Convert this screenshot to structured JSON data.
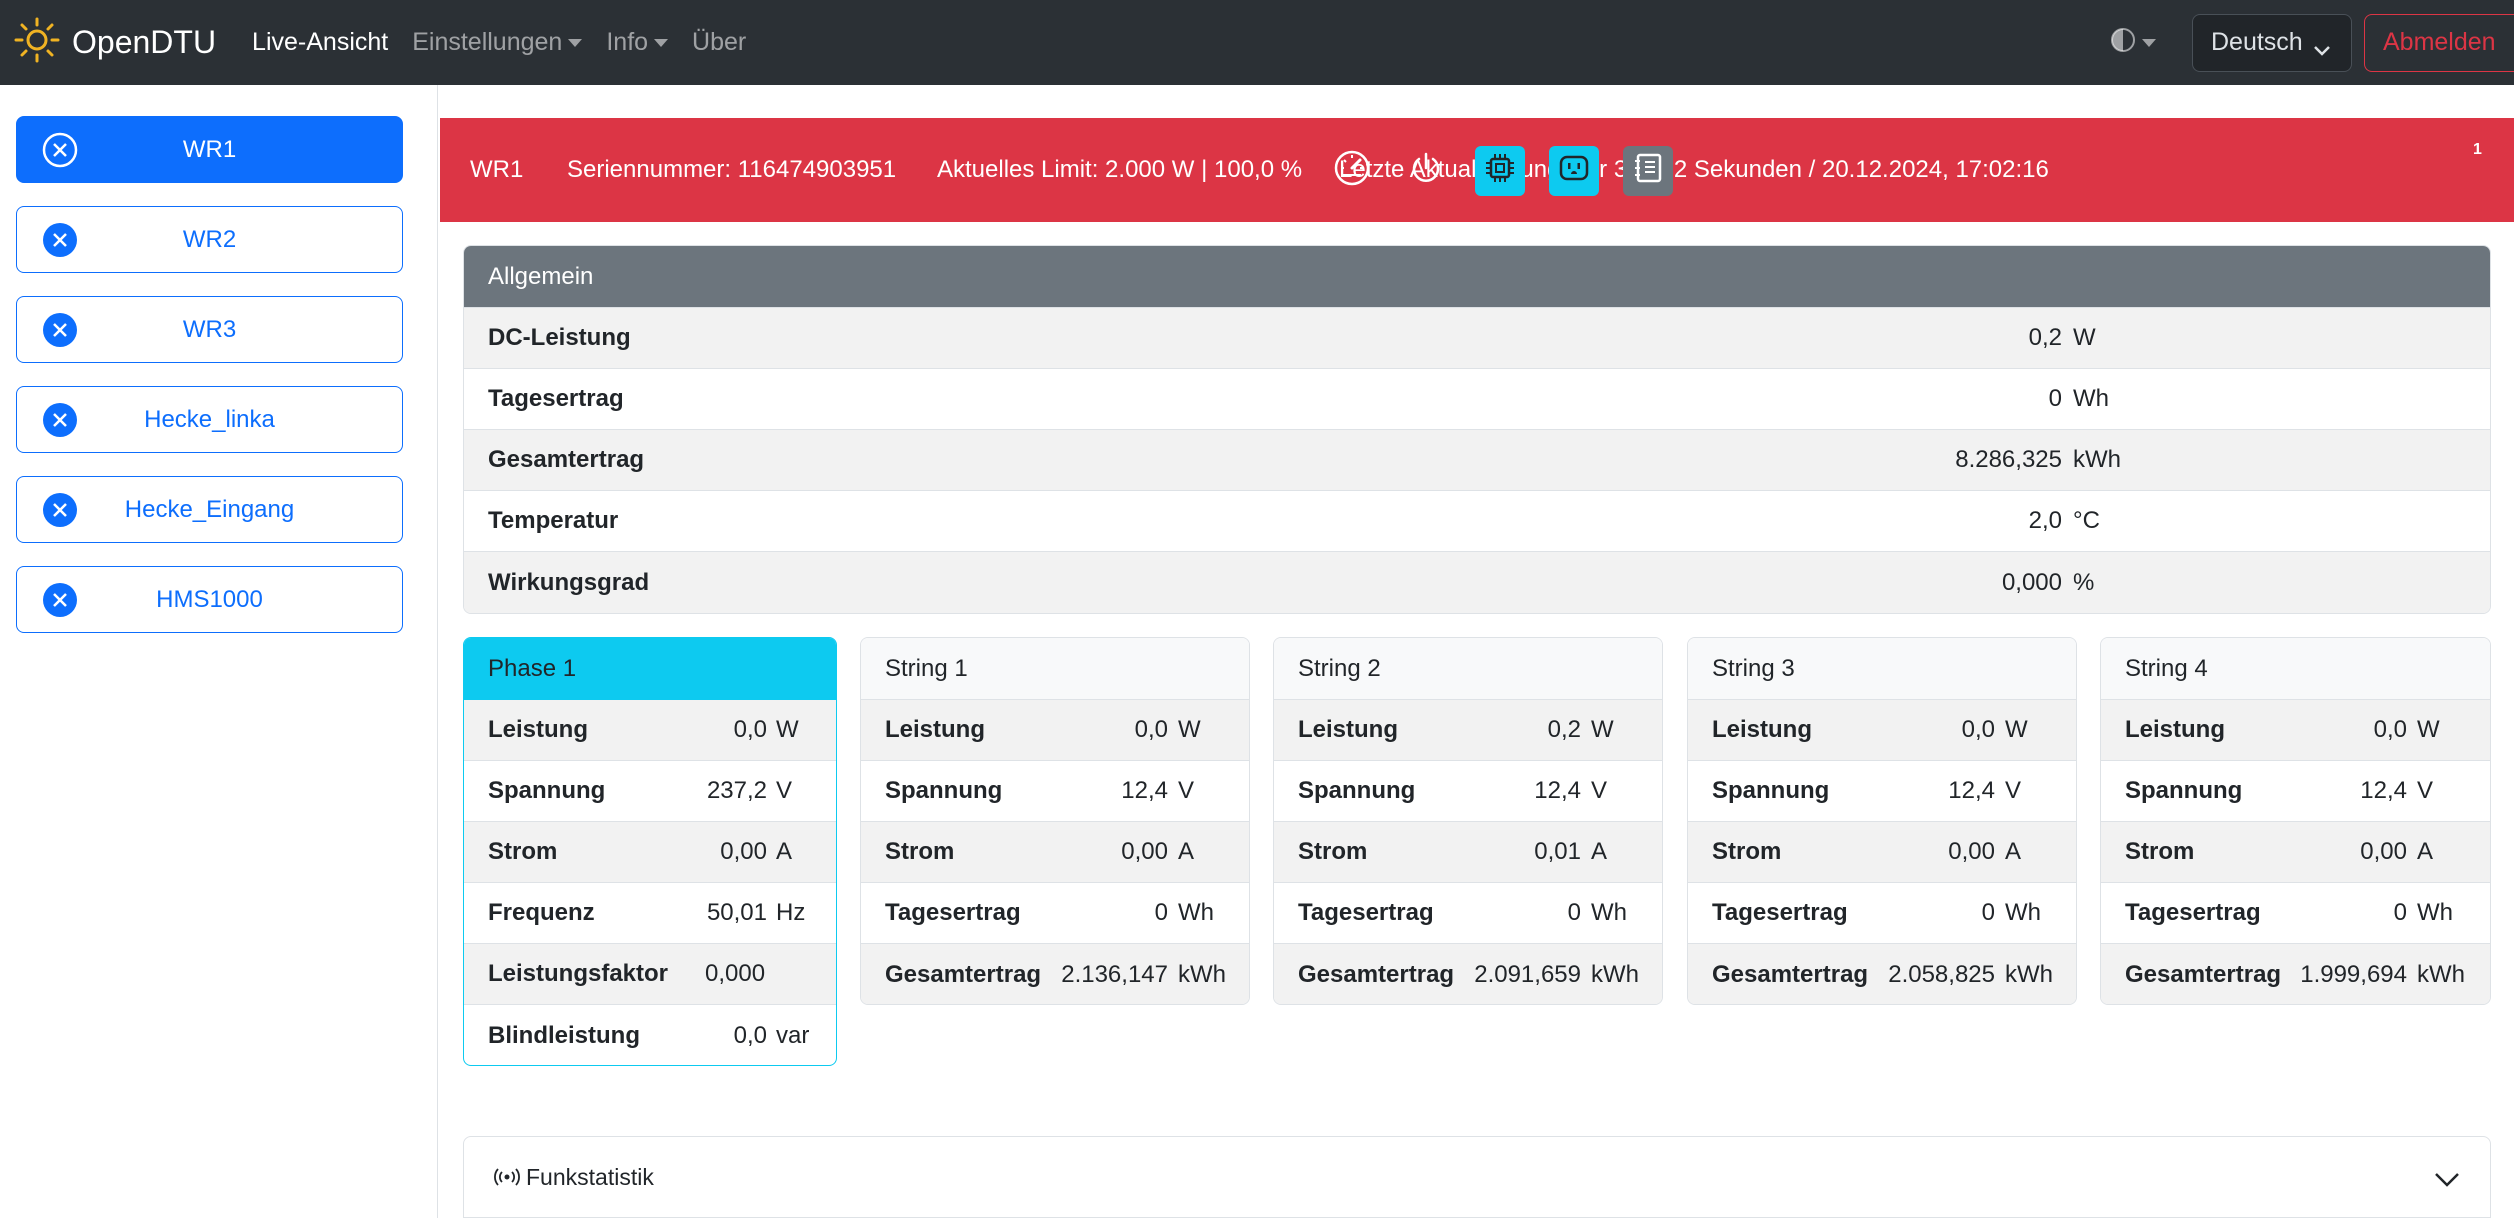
{
  "navbar": {
    "brand": "OpenDTU",
    "links": [
      {
        "label": "Live-Ansicht",
        "active": true
      },
      {
        "label": "Einstellungen",
        "dropdown": true
      },
      {
        "label": "Info",
        "dropdown": true
      },
      {
        "label": "Über"
      }
    ],
    "language": "Deutsch",
    "logout": "Abmelden"
  },
  "sidebar": {
    "inverters": [
      {
        "label": "WR1",
        "active": true
      },
      {
        "label": "WR2"
      },
      {
        "label": "WR3"
      },
      {
        "label": "Hecke_linka"
      },
      {
        "label": "Hecke_Eingang"
      },
      {
        "label": "HMS1000"
      }
    ]
  },
  "header": {
    "name": "WR1",
    "serial": "Seriennummer: 116474903951",
    "limit": "Aktuelles Limit: 2.000 W | 100,0 %",
    "update": "Letzte Aktualisierung: vor 30.302 Sekunden / 20.12.2024, 17:02:16",
    "badge": "1",
    "icons": [
      "gauge-icon",
      "power-icon",
      "cpu-icon",
      "outlet-icon",
      "journal-icon"
    ],
    "color": "#dc3545"
  },
  "general": {
    "title": "Allgemein",
    "rows": [
      {
        "label": "DC-Leistung",
        "value": "0,2",
        "unit": "W"
      },
      {
        "label": "Tagesertrag",
        "value": "0",
        "unit": "Wh"
      },
      {
        "label": "Gesamtertrag",
        "value": "8.286,325",
        "unit": "kWh"
      },
      {
        "label": "Temperatur",
        "value": "2,0",
        "unit": "°C"
      },
      {
        "label": "Wirkungsgrad",
        "value": "0,000",
        "unit": "%"
      }
    ]
  },
  "cards": [
    {
      "title": "Phase 1",
      "rows": [
        {
          "label": "Leistung",
          "value": "0,0",
          "unit": "W"
        },
        {
          "label": "Spannung",
          "value": "237,2",
          "unit": "V"
        },
        {
          "label": "Strom",
          "value": "0,00",
          "unit": "A"
        },
        {
          "label": "Frequenz",
          "value": "50,01",
          "unit": "Hz"
        },
        {
          "label": "Leistungsfaktor",
          "value": "0,000",
          "unit": ""
        },
        {
          "label": "Blindleistung",
          "value": "0,0",
          "unit": "var"
        }
      ]
    },
    {
      "title": "String 1",
      "rows": [
        {
          "label": "Leistung",
          "value": "0,0",
          "unit": "W"
        },
        {
          "label": "Spannung",
          "value": "12,4",
          "unit": "V"
        },
        {
          "label": "Strom",
          "value": "0,00",
          "unit": "A"
        },
        {
          "label": "Tagesertrag",
          "value": "0",
          "unit": "Wh"
        },
        {
          "label": "Gesamtertrag",
          "value": "2.136,147",
          "unit": "kWh"
        }
      ]
    },
    {
      "title": "String 2",
      "rows": [
        {
          "label": "Leistung",
          "value": "0,2",
          "unit": "W"
        },
        {
          "label": "Spannung",
          "value": "12,4",
          "unit": "V"
        },
        {
          "label": "Strom",
          "value": "0,01",
          "unit": "A"
        },
        {
          "label": "Tagesertrag",
          "value": "0",
          "unit": "Wh"
        },
        {
          "label": "Gesamtertrag",
          "value": "2.091,659",
          "unit": "kWh"
        }
      ]
    },
    {
      "title": "String 3",
      "rows": [
        {
          "label": "Leistung",
          "value": "0,0",
          "unit": "W"
        },
        {
          "label": "Spannung",
          "value": "12,4",
          "unit": "V"
        },
        {
          "label": "Strom",
          "value": "0,00",
          "unit": "A"
        },
        {
          "label": "Tagesertrag",
          "value": "0",
          "unit": "Wh"
        },
        {
          "label": "Gesamtertrag",
          "value": "2.058,825",
          "unit": "kWh"
        }
      ]
    },
    {
      "title": "String 4",
      "rows": [
        {
          "label": "Leistung",
          "value": "0,0",
          "unit": "W"
        },
        {
          "label": "Spannung",
          "value": "12,4",
          "unit": "V"
        },
        {
          "label": "Strom",
          "value": "0,00",
          "unit": "A"
        },
        {
          "label": "Tagesertrag",
          "value": "0",
          "unit": "Wh"
        },
        {
          "label": "Gesamtertrag",
          "value": "1.999,694",
          "unit": "kWh"
        }
      ]
    }
  ],
  "funkstatistik": {
    "label": "Funkstatistik"
  }
}
